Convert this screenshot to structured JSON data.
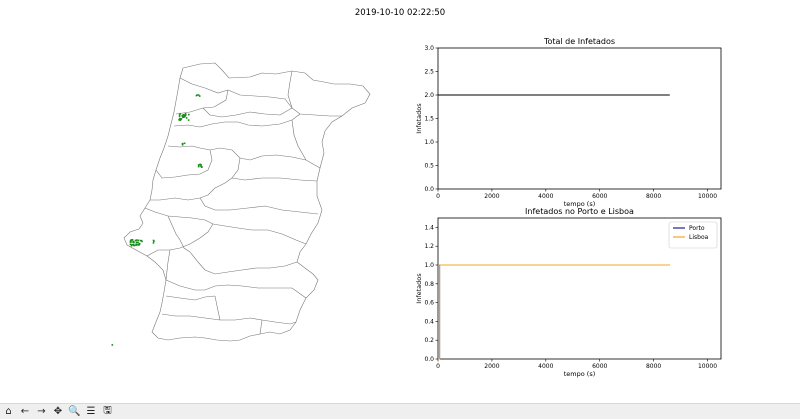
{
  "figure": {
    "suptitle": "2019-10-10 02:22:50"
  },
  "toolbar": {
    "buttons": [
      {
        "name": "home-icon",
        "glyph": "⌂"
      },
      {
        "name": "back-arrow-icon",
        "glyph": "←"
      },
      {
        "name": "forward-arrow-icon",
        "glyph": "→"
      },
      {
        "name": "pan-icon",
        "glyph": "✥"
      },
      {
        "name": "zoom-icon",
        "glyph": "🔍"
      },
      {
        "name": "configure-subplots-icon",
        "glyph": "☰"
      },
      {
        "name": "save-icon",
        "glyph": "🖫"
      }
    ]
  },
  "map": {
    "infection_color": "#1a8c1a",
    "border_color": "#777777"
  },
  "chart_data": [
    {
      "type": "line",
      "title": "Total de Infetados",
      "xlabel": "tempo (s)",
      "ylabel": "Infetados",
      "xlim": [
        0,
        10500
      ],
      "ylim": [
        0,
        3.0
      ],
      "xticks": [
        "0",
        "2000",
        "4000",
        "6000",
        "8000",
        "10000"
      ],
      "yticks": [
        "0.0",
        "0.5",
        "1.0",
        "1.5",
        "2.0",
        "2.5",
        "3.0"
      ],
      "series": [
        {
          "color": "#000000",
          "x": [
            0,
            8600
          ],
          "y": [
            2,
            2
          ]
        }
      ]
    },
    {
      "type": "line",
      "title": "Infetados no Porto e Lisboa",
      "xlabel": "tempo (s)",
      "ylabel": "Infetados",
      "xlim": [
        0,
        10500
      ],
      "ylim": [
        0,
        1.5
      ],
      "xticks": [
        "0",
        "2000",
        "4000",
        "6000",
        "8000",
        "10000"
      ],
      "yticks": [
        "0.0",
        "0.2",
        "0.4",
        "0.6",
        "0.8",
        "1.0",
        "1.2",
        "1.4"
      ],
      "legend": "top-right",
      "series": [
        {
          "name": "Porto",
          "color": "#1f1f8f",
          "x": [
            0,
            60,
            60,
            8600
          ],
          "y": [
            0,
            0,
            1,
            1
          ]
        },
        {
          "name": "Lisboa",
          "color": "#f5a623",
          "x": [
            0,
            60,
            60,
            8600
          ],
          "y": [
            0,
            0,
            1,
            1
          ]
        }
      ]
    }
  ]
}
